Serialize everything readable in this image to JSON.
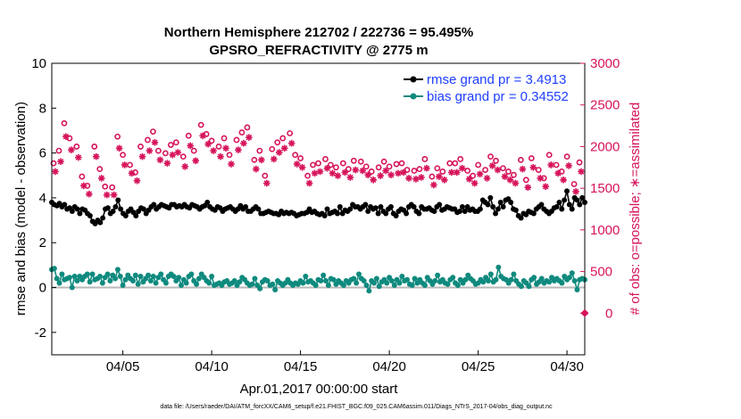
{
  "chart_data": {
    "type": "line",
    "title": "Northern Hemisphere 212702 / 222736 = 95.495%",
    "subtitle": "GPSRO_REFRACTIVITY @ 2775 m",
    "xlabel": "Apr.01,2017 00:00:00 start",
    "ylabel": "rmse and bias (model - observation)",
    "ylabel_right": "# of obs: o=possible; ∗=assimilated",
    "footnote": "data file: /Users/raeder/DAI/ATM_forcXX/CAM6_setup/f.e21.FHIST_BGC.f09_025.CAM6assim.011/Diags_NTrS_2017-04/obs_diag_output.nc",
    "x_ticks": [
      "04/05",
      "04/10",
      "04/15",
      "04/20",
      "04/25",
      "04/30"
    ],
    "y_ticks": [
      "-2",
      "0",
      "2",
      "4",
      "6",
      "8",
      "10"
    ],
    "y2_ticks": [
      "0",
      "500",
      "1000",
      "1500",
      "2000",
      "2500",
      "3000"
    ],
    "ylim": [
      -3,
      10
    ],
    "y2lim": [
      -500,
      3000
    ],
    "xlim_days": [
      1,
      31
    ],
    "x_unit": "days since Apr.01,2017 00:00:00",
    "grid": false,
    "legend_position": "top-right",
    "colors": {
      "rmse": "#000000",
      "bias": "#0f8a7e",
      "obs": "#d6135b",
      "zero_line": "#b9b9b9",
      "legend_text": "#1f3fff"
    },
    "series": [
      {
        "name": "rmse grand pr = 3.4913",
        "color": "#000000",
        "marker": "filled-circle",
        "values": [
          3.8,
          3.7,
          3.65,
          3.75,
          3.6,
          3.7,
          3.5,
          3.55,
          3.4,
          3.6,
          3.5,
          3.3,
          3.5,
          3.45,
          3.3,
          3.2,
          2.95,
          2.85,
          3.0,
          2.9,
          3.1,
          3.5,
          3.55,
          3.3,
          3.4,
          3.6,
          3.9,
          3.5,
          3.3,
          3.2,
          3.4,
          3.5,
          3.35,
          3.2,
          3.4,
          3.55,
          3.5,
          3.3,
          3.45,
          3.6,
          3.7,
          3.5,
          3.6,
          3.7,
          3.65,
          3.6,
          3.55,
          3.7,
          3.7,
          3.6,
          3.65,
          3.6,
          3.7,
          3.6,
          3.55,
          3.7,
          3.65,
          3.6,
          3.5,
          3.6,
          3.65,
          3.8,
          3.6,
          3.5,
          3.45,
          3.6,
          3.55,
          3.4,
          3.5,
          3.55,
          3.6,
          3.5,
          3.4,
          3.5,
          3.65,
          3.5,
          3.6,
          3.4,
          3.4,
          3.5,
          3.6,
          3.5,
          3.3,
          3.3,
          3.35,
          3.4,
          3.35,
          3.3,
          3.3,
          3.25,
          3.4,
          3.3,
          3.35,
          3.3,
          3.35,
          3.3,
          3.2,
          3.25,
          3.3,
          3.3,
          3.35,
          3.5,
          3.35,
          3.4,
          3.3,
          3.25,
          3.3,
          3.2,
          3.5,
          3.3,
          3.35,
          3.4,
          3.3,
          3.6,
          3.3,
          3.45,
          3.4,
          3.5,
          3.7,
          3.6,
          3.6,
          3.5,
          3.6,
          3.7,
          3.4,
          3.6,
          3.5,
          3.55,
          3.3,
          3.6,
          3.4,
          3.3,
          3.5,
          3.6,
          3.3,
          3.2,
          3.4,
          3.5,
          3.45,
          3.3,
          3.6,
          3.7,
          3.6,
          3.4,
          3.3,
          3.6,
          3.5,
          3.5,
          3.55,
          3.45,
          3.4,
          3.6,
          3.7,
          3.45,
          3.5,
          3.6,
          3.55,
          3.5,
          3.5,
          3.35,
          3.4,
          3.6,
          3.4,
          3.6,
          3.45,
          3.5,
          3.4,
          3.4,
          3.5,
          3.9,
          3.8,
          3.7,
          4.0,
          3.6,
          3.3,
          3.5,
          3.8,
          3.6,
          3.9,
          3.95,
          3.8,
          3.5,
          3.45,
          3.2,
          3.1,
          3.3,
          3.25,
          3.4,
          3.35,
          3.3,
          3.5,
          3.6,
          3.7,
          3.5,
          3.4,
          3.3,
          3.4,
          3.55,
          3.6,
          3.8,
          3.5,
          3.9,
          4.3,
          3.7,
          3.5,
          4.0,
          3.9,
          3.7,
          4.0,
          3.8
        ]
      },
      {
        "name": "bias grand pr = 0.34552",
        "color": "#0f8a7e",
        "marker": "filled-circle",
        "values": [
          0.8,
          0.85,
          0.4,
          0.2,
          0.6,
          0.35,
          0.4,
          0.45,
          0.0,
          0.5,
          0.3,
          0.5,
          0.35,
          0.5,
          0.6,
          0.25,
          0.6,
          0.35,
          0.4,
          0.5,
          0.2,
          0.45,
          0.6,
          0.3,
          0.55,
          0.4,
          0.8,
          0.5,
          0.1,
          0.35,
          0.55,
          0.4,
          0.3,
          0.55,
          0.15,
          0.5,
          0.25,
          0.4,
          0.55,
          0.3,
          0.5,
          0.2,
          0.45,
          0.6,
          0.35,
          0.2,
          0.5,
          0.6,
          0.5,
          0.3,
          0.45,
          0.1,
          0.35,
          0.2,
          0.5,
          0.6,
          0.3,
          0.15,
          0.4,
          0.6,
          0.45,
          0.3,
          0.2,
          0.5,
          0.1,
          0.15,
          0.2,
          0.1,
          0.25,
          0.3,
          0.15,
          0.2,
          0.3,
          0.1,
          0.25,
          0.45,
          0.35,
          0.2,
          0.1,
          0.15,
          0.4,
          0.1,
          -0.05,
          0.25,
          0.35,
          0.3,
          0.1,
          0.15,
          -0.1,
          0.3,
          0.2,
          0.1,
          0.2,
          0.35,
          0.2,
          0.1,
          0.2,
          0.15,
          0.3,
          0.2,
          0.5,
          0.25,
          0.3,
          0.2,
          0.1,
          0.35,
          0.3,
          0.55,
          0.3,
          0.1,
          0.4,
          0.35,
          0.15,
          0.3,
          0.2,
          0.1,
          0.3,
          0.2,
          0.35,
          0.4,
          0.2,
          0.6,
          0.4,
          0.3,
          0.1,
          -0.15,
          0.3,
          0.2,
          0.4,
          0.05,
          0.25,
          0.35,
          0.2,
          0.45,
          0.3,
          0.1,
          0.35,
          0.2,
          0.5,
          0.3,
          0.35,
          0.15,
          0.1,
          0.4,
          0.2,
          0.35,
          0.2,
          0.1,
          0.45,
          0.3,
          0.15,
          0.3,
          0.55,
          0.25,
          0.35,
          0.2,
          0.15,
          0.35,
          0.45,
          0.2,
          0.1,
          0.35,
          0.2,
          0.35,
          0.55,
          0.4,
          0.3,
          0.15,
          0.2,
          0.35,
          0.25,
          0.45,
          0.3,
          0.6,
          0.25,
          0.35,
          0.9,
          0.5,
          0.4,
          0.35,
          0.2,
          0.35,
          0.6,
          0.3,
          0.15,
          0.05,
          0.3,
          0.2,
          0.05,
          0.35,
          0.45,
          0.15,
          0.25,
          0.4,
          0.2,
          0.3,
          0.25,
          0.45,
          0.3,
          0.4,
          0.3,
          0.2,
          0.5,
          0.35,
          0.45,
          0.65,
          0.3,
          -0.1,
          0.35,
          0.4,
          0.35
        ]
      }
    ],
    "obs_possible": {
      "name": "o=possible",
      "color": "#d6135b",
      "x": [
        1.1,
        1.4,
        1.7,
        2.0,
        2.4,
        2.7,
        3.0,
        3.4,
        3.7,
        4.0,
        4.4,
        4.7,
        5.0,
        5.4,
        5.7,
        6.0,
        6.4,
        6.7,
        7.0,
        7.4,
        7.7,
        8.0,
        8.4,
        8.7,
        9.0,
        9.4,
        9.7,
        10.0,
        10.4,
        10.7,
        11.0,
        11.4,
        11.7,
        12.0,
        12.4,
        12.7,
        13.0,
        13.4,
        13.7,
        14.0,
        14.4,
        14.7,
        15.0,
        15.4,
        15.7,
        16.0,
        16.4,
        16.7,
        17.0,
        17.4,
        17.7,
        18.0,
        18.4,
        18.7,
        19.0,
        19.4,
        19.7,
        20.0,
        20.4,
        20.7,
        21.0,
        21.4,
        21.7,
        22.0,
        22.4,
        22.7,
        23.0,
        23.4,
        23.7,
        24.0,
        24.4,
        24.7,
        25.0,
        25.4,
        25.7,
        26.0,
        26.4,
        26.7,
        27.0,
        27.4,
        27.7,
        28.0,
        28.4,
        28.7,
        29.0,
        29.4,
        29.7,
        30.0,
        30.4,
        30.7
      ],
      "values": [
        1800,
        1950,
        2280,
        2100,
        2000,
        1640,
        1530,
        2000,
        1730,
        1520,
        1510,
        2120,
        1900,
        1780,
        1690,
        2000,
        2080,
        2180,
        1950,
        1920,
        2020,
        2050,
        1880,
        2130,
        1950,
        2260,
        2150,
        2070,
        2000,
        2100,
        1900,
        2080,
        2170,
        2230,
        1840,
        1950,
        1650,
        1970,
        2050,
        2100,
        2160,
        1900,
        1860,
        1650,
        1780,
        1800,
        1850,
        1780,
        1750,
        1800,
        1730,
        1830,
        1820,
        1760,
        1700,
        1750,
        1820,
        1760,
        1790,
        1800,
        1720,
        1710,
        1730,
        1850,
        1640,
        1740,
        1700,
        1800,
        1800,
        1850,
        1710,
        1650,
        1780,
        1720,
        1880,
        1830,
        1740,
        1700,
        1660,
        1840,
        1600,
        1860,
        1720,
        1620,
        1900,
        1780,
        1700,
        1880,
        1550,
        1810
      ]
    },
    "obs_assimilated": {
      "name": "∗=assimilated",
      "color": "#d6135b",
      "x": [
        1.2,
        1.5,
        1.8,
        2.1,
        2.5,
        2.8,
        3.1,
        3.5,
        3.8,
        4.1,
        4.5,
        4.8,
        5.1,
        5.5,
        5.8,
        6.1,
        6.5,
        6.8,
        7.1,
        7.5,
        7.8,
        8.1,
        8.5,
        8.8,
        9.1,
        9.5,
        9.8,
        10.1,
        10.5,
        10.8,
        11.1,
        11.5,
        11.8,
        12.1,
        12.5,
        12.8,
        13.1,
        13.5,
        13.8,
        14.1,
        14.5,
        14.8,
        15.1,
        15.5,
        15.8,
        16.1,
        16.5,
        16.8,
        17.1,
        17.5,
        17.8,
        18.1,
        18.5,
        18.8,
        19.1,
        19.5,
        19.8,
        20.1,
        20.5,
        20.8,
        21.1,
        21.5,
        21.8,
        22.1,
        22.5,
        22.8,
        23.1,
        23.5,
        23.8,
        24.1,
        24.5,
        24.8,
        25.1,
        25.5,
        25.8,
        26.1,
        26.5,
        26.8,
        27.1,
        27.5,
        27.8,
        28.1,
        28.5,
        28.8,
        29.1,
        29.5,
        29.8,
        30.1,
        30.5,
        30.8
      ],
      "values": [
        1700,
        1820,
        2120,
        1960,
        1870,
        1530,
        1430,
        1880,
        1620,
        1420,
        1420,
        1980,
        1780,
        1680,
        1590,
        1880,
        1950,
        2050,
        1840,
        1800,
        1900,
        1930,
        1760,
        2010,
        1830,
        2130,
        2030,
        1950,
        1880,
        1980,
        1790,
        1960,
        2040,
        2110,
        1730,
        1840,
        1560,
        1850,
        1930,
        1980,
        2040,
        1790,
        1750,
        1560,
        1680,
        1700,
        1740,
        1680,
        1650,
        1690,
        1630,
        1720,
        1710,
        1660,
        1600,
        1650,
        1710,
        1660,
        1680,
        1690,
        1620,
        1610,
        1630,
        1740,
        1540,
        1640,
        1600,
        1690,
        1690,
        1740,
        1610,
        1560,
        1670,
        1620,
        1770,
        1720,
        1640,
        1600,
        1560,
        1730,
        1510,
        1750,
        1620,
        1520,
        1780,
        1680,
        1600,
        1770,
        1460,
        1700
      ]
    },
    "obs_out_of_range": [
      {
        "x": 31.0,
        "value": 0
      }
    ]
  }
}
